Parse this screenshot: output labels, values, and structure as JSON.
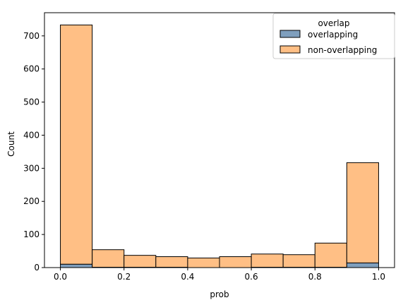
{
  "chart_data": {
    "type": "bar",
    "histogram": true,
    "stacked": true,
    "xlabel": "prob",
    "ylabel": "Count",
    "xlim": [
      -0.05,
      1.05
    ],
    "ylim": [
      0,
      770
    ],
    "xticks": [
      0.0,
      0.2,
      0.4,
      0.6,
      0.8,
      1.0
    ],
    "xtick_labels": [
      "0.0",
      "0.2",
      "0.4",
      "0.6",
      "0.8",
      "1.0"
    ],
    "yticks": [
      0,
      100,
      200,
      300,
      400,
      500,
      600,
      700
    ],
    "ytick_labels": [
      "0",
      "100",
      "200",
      "300",
      "400",
      "500",
      "600",
      "700"
    ],
    "bins": [
      [
        0.0,
        0.1
      ],
      [
        0.1,
        0.2
      ],
      [
        0.2,
        0.3
      ],
      [
        0.3,
        0.4
      ],
      [
        0.4,
        0.5
      ],
      [
        0.5,
        0.6
      ],
      [
        0.6,
        0.7
      ],
      [
        0.7,
        0.8
      ],
      [
        0.8,
        0.9
      ],
      [
        0.9,
        1.0
      ]
    ],
    "series": [
      {
        "name": "overlapping",
        "color": "#7f9fbd",
        "values": [
          10,
          1,
          1,
          1,
          0,
          0,
          1,
          1,
          1,
          14
        ]
      },
      {
        "name": "non-overlapping",
        "color": "#ffbf85",
        "values": [
          723,
          53,
          36,
          32,
          29,
          33,
          40,
          38,
          73,
          303
        ]
      }
    ],
    "legend": {
      "title": "overlap",
      "placement": "top-right"
    },
    "grid": false
  }
}
